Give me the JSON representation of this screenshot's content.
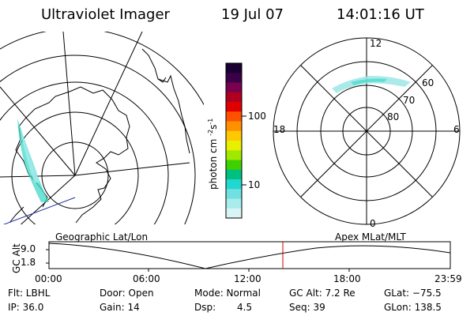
{
  "header": {
    "instrument": "Ultraviolet Imager",
    "date": "19 Jul 07",
    "time": "14:01:16 UT"
  },
  "colorbar": {
    "unit": "photon cm",
    "unit_exp1": "-2",
    "unit_s": "s",
    "unit_exp2": "-1",
    "tick_100": "100",
    "tick_10": "10",
    "colors": [
      "#1a0030",
      "#3a0048",
      "#7a0050",
      "#b00020",
      "#e00000",
      "#ff5000",
      "#ff9000",
      "#ffc800",
      "#e8f000",
      "#a0e800",
      "#40d000",
      "#00c080",
      "#20d8d0",
      "#70e0e0",
      "#a8ecec",
      "#d8f4f4"
    ]
  },
  "polar_plot": {
    "mlt_top": "12",
    "mlt_bottom": "0",
    "mlt_left": "18",
    "mlt_right": "6",
    "lat_60": "60",
    "lat_70": "70",
    "lat_80": "80"
  },
  "timeline": {
    "left_label": "Geographic Lat/Lon",
    "right_label": "Apex MLat/MLT",
    "axis_label": "GC Alt",
    "y_top": "9.0",
    "y_bottom": "1.8",
    "ticks": [
      "00:00",
      "06:00",
      "12:00",
      "18:00",
      "23:59"
    ],
    "marker_color": "#d00000"
  },
  "status": {
    "flt": "Flt: LBHL",
    "door": "Door: Open",
    "mode": "Mode: Normal",
    "gcalt": "GC Alt: 7.2 Re",
    "glat": "GLat: −75.5",
    "ip": "IP: 36.0",
    "gain": "Gain: 14",
    "dsp_label": "Dsp:",
    "dsp_value": "4.5",
    "seq": "Seq: 39",
    "glon": "GLon: 138.5"
  }
}
